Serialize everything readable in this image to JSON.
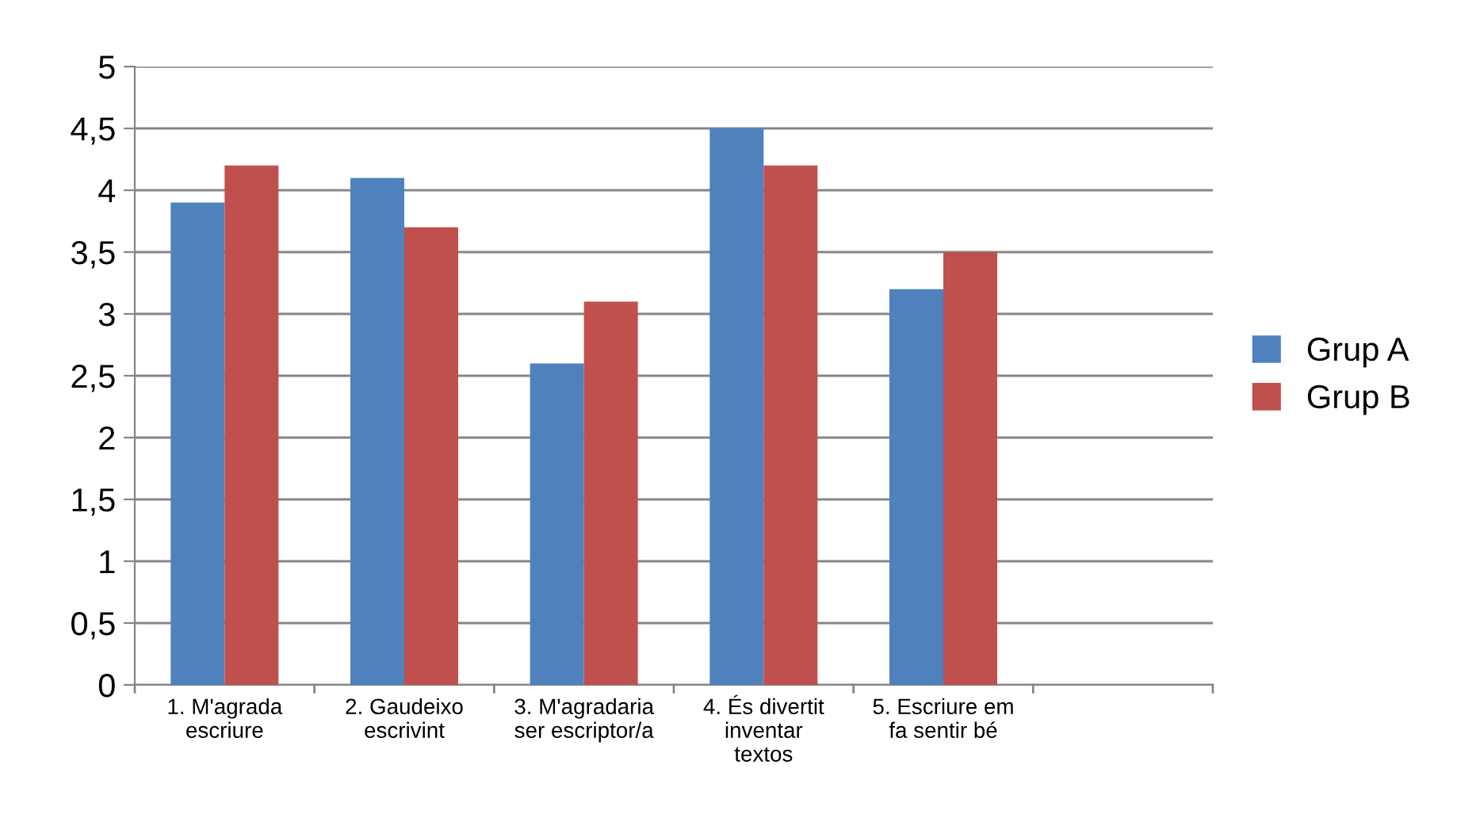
{
  "chart_data": {
    "type": "bar",
    "categories": [
      "1. M'agrada\nescriure",
      "2. Gaudeixo\nescrivint",
      "3. M'agradaria\nser escriptor/a",
      "4. És divertit\ninventar\ntextos",
      "5. Escriure em\nfa sentir bé",
      null
    ],
    "series": [
      {
        "name": "Grup A",
        "color": "#4f81bd",
        "values": [
          3.9,
          4.1,
          2.6,
          4.5,
          3.2,
          null
        ]
      },
      {
        "name": "Grup B",
        "color": "#c0504d",
        "values": [
          4.2,
          3.7,
          3.1,
          4.2,
          3.5,
          null
        ]
      }
    ],
    "ylim": [
      0,
      5
    ],
    "yticks": [
      0,
      {
        "value": 0.5,
        "label": "0,5"
      },
      1,
      {
        "value": 1.5,
        "label": "1,5"
      },
      2,
      {
        "value": 2.5,
        "label": "2,5"
      },
      3,
      {
        "value": 3.5,
        "label": "3,5"
      },
      4,
      {
        "value": 4.5,
        "label": "4,5"
      },
      5
    ],
    "grid": "y",
    "legend": "right"
  }
}
